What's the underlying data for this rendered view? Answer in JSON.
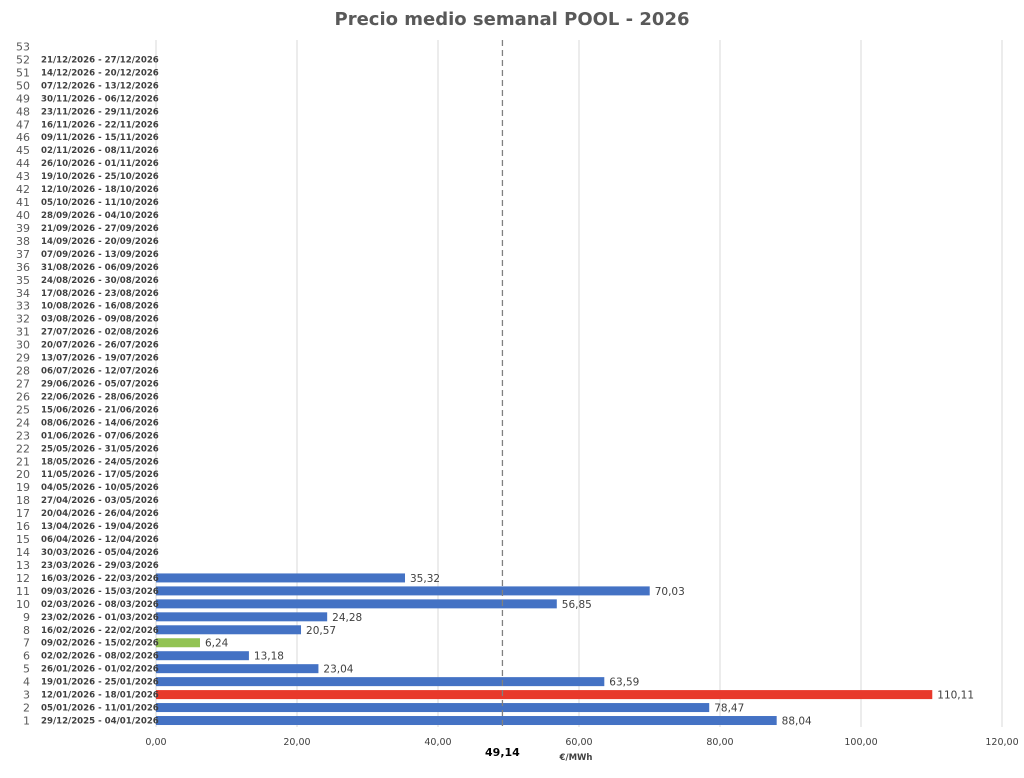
{
  "chart_data": {
    "type": "bar",
    "orientation": "horizontal",
    "title": "Precio medio semanal POOL - 2026",
    "xlabel": "€/MWh",
    "xlim": [
      0,
      120
    ],
    "xticks": [
      "0,00",
      "20,00",
      "40,00",
      "60,00",
      "80,00",
      "100,00",
      "120,00"
    ],
    "xtick_values": [
      0,
      20,
      40,
      60,
      80,
      100,
      120
    ],
    "average": {
      "value": 49.14,
      "label": "49,14"
    },
    "colors": {
      "default": "#4472C4",
      "max": "#E8392B",
      "min": "#92C353",
      "avg_line": "#808080",
      "grid": "#D9D9D9"
    },
    "weeks": [
      {
        "num": "1",
        "label": "29/12/2025 - 04/01/2026",
        "value": 88.04,
        "value_label": "88,04",
        "color": "default"
      },
      {
        "num": "2",
        "label": "05/01/2026 - 11/01/2026",
        "value": 78.47,
        "value_label": "78,47",
        "color": "default"
      },
      {
        "num": "3",
        "label": "12/01/2026 - 18/01/2026",
        "value": 110.11,
        "value_label": "110,11",
        "color": "max"
      },
      {
        "num": "4",
        "label": "19/01/2026 - 25/01/2026",
        "value": 63.59,
        "value_label": "63,59",
        "color": "default"
      },
      {
        "num": "5",
        "label": "26/01/2026 - 01/02/2026",
        "value": 23.04,
        "value_label": "23,04",
        "color": "default"
      },
      {
        "num": "6",
        "label": "02/02/2026 - 08/02/2026",
        "value": 13.18,
        "value_label": "13,18",
        "color": "default"
      },
      {
        "num": "7",
        "label": "09/02/2026 - 15/02/2026",
        "value": 6.24,
        "value_label": "6,24",
        "color": "min"
      },
      {
        "num": "8",
        "label": "16/02/2026 - 22/02/2026",
        "value": 20.57,
        "value_label": "20,57",
        "color": "default"
      },
      {
        "num": "9",
        "label": "23/02/2026 - 01/03/2026",
        "value": 24.28,
        "value_label": "24,28",
        "color": "default"
      },
      {
        "num": "10",
        "label": "02/03/2026 - 08/03/2026",
        "value": 56.85,
        "value_label": "56,85",
        "color": "default"
      },
      {
        "num": "11",
        "label": "09/03/2026 - 15/03/2026",
        "value": 70.03,
        "value_label": "70,03",
        "color": "default"
      },
      {
        "num": "12",
        "label": "16/03/2026 - 22/03/2026",
        "value": 35.32,
        "value_label": "35,32",
        "color": "default"
      },
      {
        "num": "13",
        "label": "23/03/2026 - 29/03/2026",
        "value": null,
        "value_label": "",
        "color": "default"
      },
      {
        "num": "14",
        "label": "30/03/2026 - 05/04/2026",
        "value": null,
        "value_label": "",
        "color": "default"
      },
      {
        "num": "15",
        "label": "06/04/2026 - 12/04/2026",
        "value": null,
        "value_label": "",
        "color": "default"
      },
      {
        "num": "16",
        "label": "13/04/2026 - 19/04/2026",
        "value": null,
        "value_label": "",
        "color": "default"
      },
      {
        "num": "17",
        "label": "20/04/2026 - 26/04/2026",
        "value": null,
        "value_label": "",
        "color": "default"
      },
      {
        "num": "18",
        "label": "27/04/2026 - 03/05/2026",
        "value": null,
        "value_label": "",
        "color": "default"
      },
      {
        "num": "19",
        "label": "04/05/2026 - 10/05/2026",
        "value": null,
        "value_label": "",
        "color": "default"
      },
      {
        "num": "20",
        "label": "11/05/2026 - 17/05/2026",
        "value": null,
        "value_label": "",
        "color": "default"
      },
      {
        "num": "21",
        "label": "18/05/2026 - 24/05/2026",
        "value": null,
        "value_label": "",
        "color": "default"
      },
      {
        "num": "22",
        "label": "25/05/2026 - 31/05/2026",
        "value": null,
        "value_label": "",
        "color": "default"
      },
      {
        "num": "23",
        "label": "01/06/2026 - 07/06/2026",
        "value": null,
        "value_label": "",
        "color": "default"
      },
      {
        "num": "24",
        "label": "08/06/2026 - 14/06/2026",
        "value": null,
        "value_label": "",
        "color": "default"
      },
      {
        "num": "25",
        "label": "15/06/2026 - 21/06/2026",
        "value": null,
        "value_label": "",
        "color": "default"
      },
      {
        "num": "26",
        "label": "22/06/2026 - 28/06/2026",
        "value": null,
        "value_label": "",
        "color": "default"
      },
      {
        "num": "27",
        "label": "29/06/2026 - 05/07/2026",
        "value": null,
        "value_label": "",
        "color": "default"
      },
      {
        "num": "28",
        "label": "06/07/2026 - 12/07/2026",
        "value": null,
        "value_label": "",
        "color": "default"
      },
      {
        "num": "29",
        "label": "13/07/2026 - 19/07/2026",
        "value": null,
        "value_label": "",
        "color": "default"
      },
      {
        "num": "30",
        "label": "20/07/2026 - 26/07/2026",
        "value": null,
        "value_label": "",
        "color": "default"
      },
      {
        "num": "31",
        "label": "27/07/2026 - 02/08/2026",
        "value": null,
        "value_label": "",
        "color": "default"
      },
      {
        "num": "32",
        "label": "03/08/2026 - 09/08/2026",
        "value": null,
        "value_label": "",
        "color": "default"
      },
      {
        "num": "33",
        "label": "10/08/2026 - 16/08/2026",
        "value": null,
        "value_label": "",
        "color": "default"
      },
      {
        "num": "34",
        "label": "17/08/2026 - 23/08/2026",
        "value": null,
        "value_label": "",
        "color": "default"
      },
      {
        "num": "35",
        "label": "24/08/2026 - 30/08/2026",
        "value": null,
        "value_label": "",
        "color": "default"
      },
      {
        "num": "36",
        "label": "31/08/2026 - 06/09/2026",
        "value": null,
        "value_label": "",
        "color": "default"
      },
      {
        "num": "37",
        "label": "07/09/2026 - 13/09/2026",
        "value": null,
        "value_label": "",
        "color": "default"
      },
      {
        "num": "38",
        "label": "14/09/2026 - 20/09/2026",
        "value": null,
        "value_label": "",
        "color": "default"
      },
      {
        "num": "39",
        "label": "21/09/2026 - 27/09/2026",
        "value": null,
        "value_label": "",
        "color": "default"
      },
      {
        "num": "40",
        "label": "28/09/2026 - 04/10/2026",
        "value": null,
        "value_label": "",
        "color": "default"
      },
      {
        "num": "41",
        "label": "05/10/2026 - 11/10/2026",
        "value": null,
        "value_label": "",
        "color": "default"
      },
      {
        "num": "42",
        "label": "12/10/2026 - 18/10/2026",
        "value": null,
        "value_label": "",
        "color": "default"
      },
      {
        "num": "43",
        "label": "19/10/2026 - 25/10/2026",
        "value": null,
        "value_label": "",
        "color": "default"
      },
      {
        "num": "44",
        "label": "26/10/2026 - 01/11/2026",
        "value": null,
        "value_label": "",
        "color": "default"
      },
      {
        "num": "45",
        "label": "02/11/2026 - 08/11/2026",
        "value": null,
        "value_label": "",
        "color": "default"
      },
      {
        "num": "46",
        "label": "09/11/2026 - 15/11/2026",
        "value": null,
        "value_label": "",
        "color": "default"
      },
      {
        "num": "47",
        "label": "16/11/2026 - 22/11/2026",
        "value": null,
        "value_label": "",
        "color": "default"
      },
      {
        "num": "48",
        "label": "23/11/2026 - 29/11/2026",
        "value": null,
        "value_label": "",
        "color": "default"
      },
      {
        "num": "49",
        "label": "30/11/2026 - 06/12/2026",
        "value": null,
        "value_label": "",
        "color": "default"
      },
      {
        "num": "50",
        "label": "07/12/2026 - 13/12/2026",
        "value": null,
        "value_label": "",
        "color": "default"
      },
      {
        "num": "51",
        "label": "14/12/2026 - 20/12/2026",
        "value": null,
        "value_label": "",
        "color": "default"
      },
      {
        "num": "52",
        "label": "21/12/2026 - 27/12/2026",
        "value": null,
        "value_label": "",
        "color": "default"
      },
      {
        "num": "53",
        "label": "",
        "value": null,
        "value_label": "",
        "color": "default"
      }
    ]
  }
}
